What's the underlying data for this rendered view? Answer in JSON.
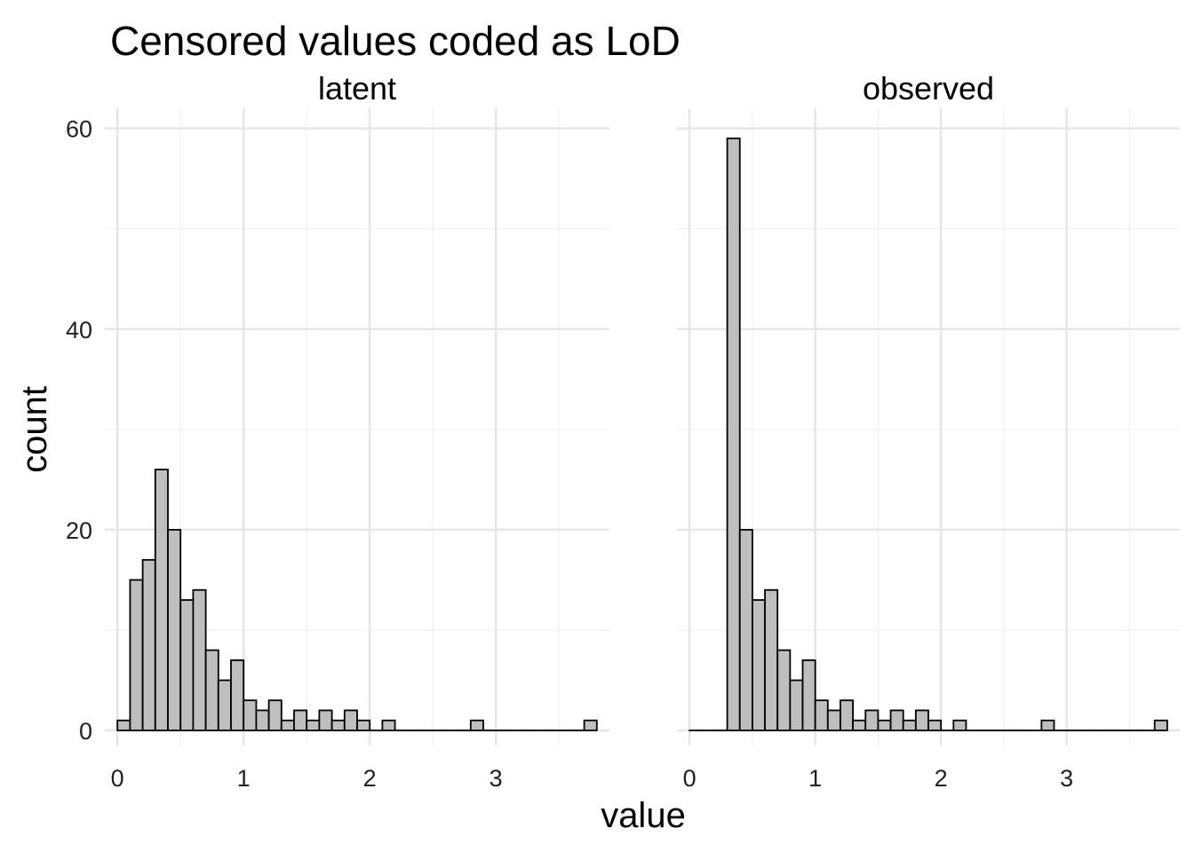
{
  "chart_data": {
    "type": "bar",
    "title": "Censored values coded as LoD",
    "xlabel": "value",
    "ylabel": "count",
    "xlim": [
      -0.1,
      3.9
    ],
    "ylim": [
      -1.5,
      62
    ],
    "x_ticks": [
      0,
      1,
      2,
      3
    ],
    "y_ticks": [
      0,
      20,
      40,
      60
    ],
    "grid": true,
    "bin_width": 0.1,
    "bar_fill": "#bebebe",
    "bar_stroke": "#000000",
    "panels": [
      {
        "label": "latent",
        "bin_starts": [
          0.0,
          0.1,
          0.2,
          0.3,
          0.4,
          0.5,
          0.6,
          0.7,
          0.8,
          0.9,
          1.0,
          1.1,
          1.2,
          1.3,
          1.4,
          1.5,
          1.6,
          1.7,
          1.8,
          1.9,
          2.0,
          2.1,
          2.2,
          2.3,
          2.4,
          2.5,
          2.6,
          2.7,
          2.8,
          2.9,
          3.0,
          3.1,
          3.2,
          3.3,
          3.4,
          3.5,
          3.6,
          3.7
        ],
        "counts": [
          1,
          15,
          17,
          26,
          20,
          13,
          14,
          8,
          5,
          7,
          3,
          2,
          3,
          1,
          2,
          1,
          2,
          1,
          2,
          1,
          0,
          1,
          0,
          0,
          0,
          0,
          0,
          0,
          1,
          0,
          0,
          0,
          0,
          0,
          0,
          0,
          0,
          1
        ]
      },
      {
        "label": "observed",
        "bin_starts": [
          0.0,
          0.1,
          0.2,
          0.3,
          0.4,
          0.5,
          0.6,
          0.7,
          0.8,
          0.9,
          1.0,
          1.1,
          1.2,
          1.3,
          1.4,
          1.5,
          1.6,
          1.7,
          1.8,
          1.9,
          2.0,
          2.1,
          2.2,
          2.3,
          2.4,
          2.5,
          2.6,
          2.7,
          2.8,
          2.9,
          3.0,
          3.1,
          3.2,
          3.3,
          3.4,
          3.5,
          3.6,
          3.7
        ],
        "counts": [
          0,
          0,
          0,
          59,
          20,
          13,
          14,
          8,
          5,
          7,
          3,
          2,
          3,
          1,
          2,
          1,
          2,
          1,
          2,
          1,
          0,
          1,
          0,
          0,
          0,
          0,
          0,
          0,
          1,
          0,
          0,
          0,
          0,
          0,
          0,
          0,
          0,
          1
        ]
      }
    ]
  }
}
